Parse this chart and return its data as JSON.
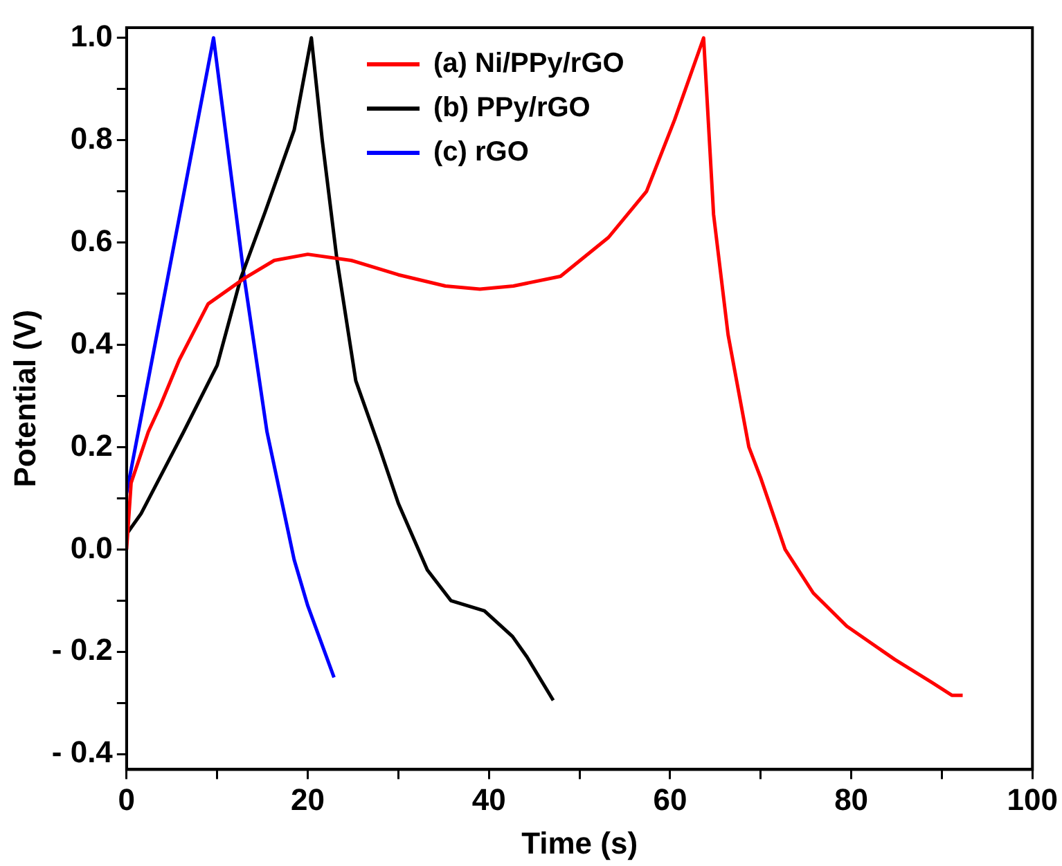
{
  "chart_data": {
    "type": "line",
    "xlabel": "Time (s)",
    "ylabel": "Potential (V)",
    "xlim": [
      0,
      100
    ],
    "ylim": [
      -0.43,
      1.02
    ],
    "xticks": [
      0,
      {
        "value": 10,
        "label": null
      },
      20,
      {
        "value": 30,
        "label": null
      },
      40,
      {
        "value": 50,
        "label": null
      },
      60,
      {
        "value": 70,
        "label": null
      },
      80,
      {
        "value": 90,
        "label": null
      },
      100
    ],
    "yticks": [
      {
        "value": -0.4,
        "label": "- 0.4"
      },
      {
        "value": -0.3,
        "label": null
      },
      {
        "value": -0.2,
        "label": "- 0.2"
      },
      {
        "value": -0.1,
        "label": null
      },
      {
        "value": 0,
        "label": "0.0"
      },
      {
        "value": 0.1,
        "label": null
      },
      {
        "value": 0.2,
        "label": "0.2"
      },
      {
        "value": 0.3,
        "label": null
      },
      {
        "value": 0.4,
        "label": "0.4"
      },
      {
        "value": 0.5,
        "label": null
      },
      {
        "value": 0.6,
        "label": "0.6"
      },
      {
        "value": 0.7,
        "label": null
      },
      {
        "value": 0.8,
        "label": "0.8"
      },
      {
        "value": 0.9,
        "label": null
      },
      {
        "value": 1.0,
        "label": "1.0"
      }
    ],
    "grid": false,
    "legend": "top",
    "marker": "none",
    "line_style": "solid",
    "series": [
      {
        "name": "(a) Ni/PPy/rGO",
        "color": "#ff0000",
        "x": [
          0,
          0.5,
          2.4,
          3.7,
          5.8,
          9,
          13,
          16.3,
          20,
          24.8,
          30,
          35.2,
          39,
          42.7,
          47.9,
          53.2,
          57.4,
          60.5,
          63.7,
          64.8,
          66.4,
          68.7,
          70,
          72.7,
          75.8,
          79.5,
          84.8,
          88.9,
          91.1,
          92.3
        ],
        "values": [
          0,
          0.13,
          0.23,
          0.28,
          0.37,
          0.48,
          0.53,
          0.565,
          0.577,
          0.565,
          0.537,
          0.515,
          0.509,
          0.515,
          0.534,
          0.61,
          0.7,
          0.84,
          1.0,
          0.655,
          0.42,
          0.2,
          0.14,
          0,
          -0.085,
          -0.15,
          -0.215,
          -0.26,
          -0.285,
          -0.285
        ]
      },
      {
        "name": "(b) PPy/rGO",
        "color": "#000000",
        "x": [
          0,
          1.6,
          6.3,
          10,
          12.6,
          15.3,
          18.5,
          20.4,
          21.6,
          23.2,
          25.3,
          27.9,
          30,
          33.2,
          35.8,
          39.5,
          42.6,
          44.2,
          47.1
        ],
        "values": [
          0.03,
          0.07,
          0.23,
          0.36,
          0.53,
          0.66,
          0.82,
          1.0,
          0.8,
          0.57,
          0.33,
          0.2,
          0.09,
          -0.04,
          -0.1,
          -0.12,
          -0.17,
          -0.21,
          -0.295
        ]
      },
      {
        "name": "(c) rGO",
        "color": "#0000ff",
        "x": [
          0,
          9.6,
          13,
          15.5,
          18.5,
          20,
          22.9
        ],
        "values": [
          0.11,
          1.0,
          0.53,
          0.23,
          -0.02,
          -0.11,
          -0.25
        ]
      }
    ]
  }
}
